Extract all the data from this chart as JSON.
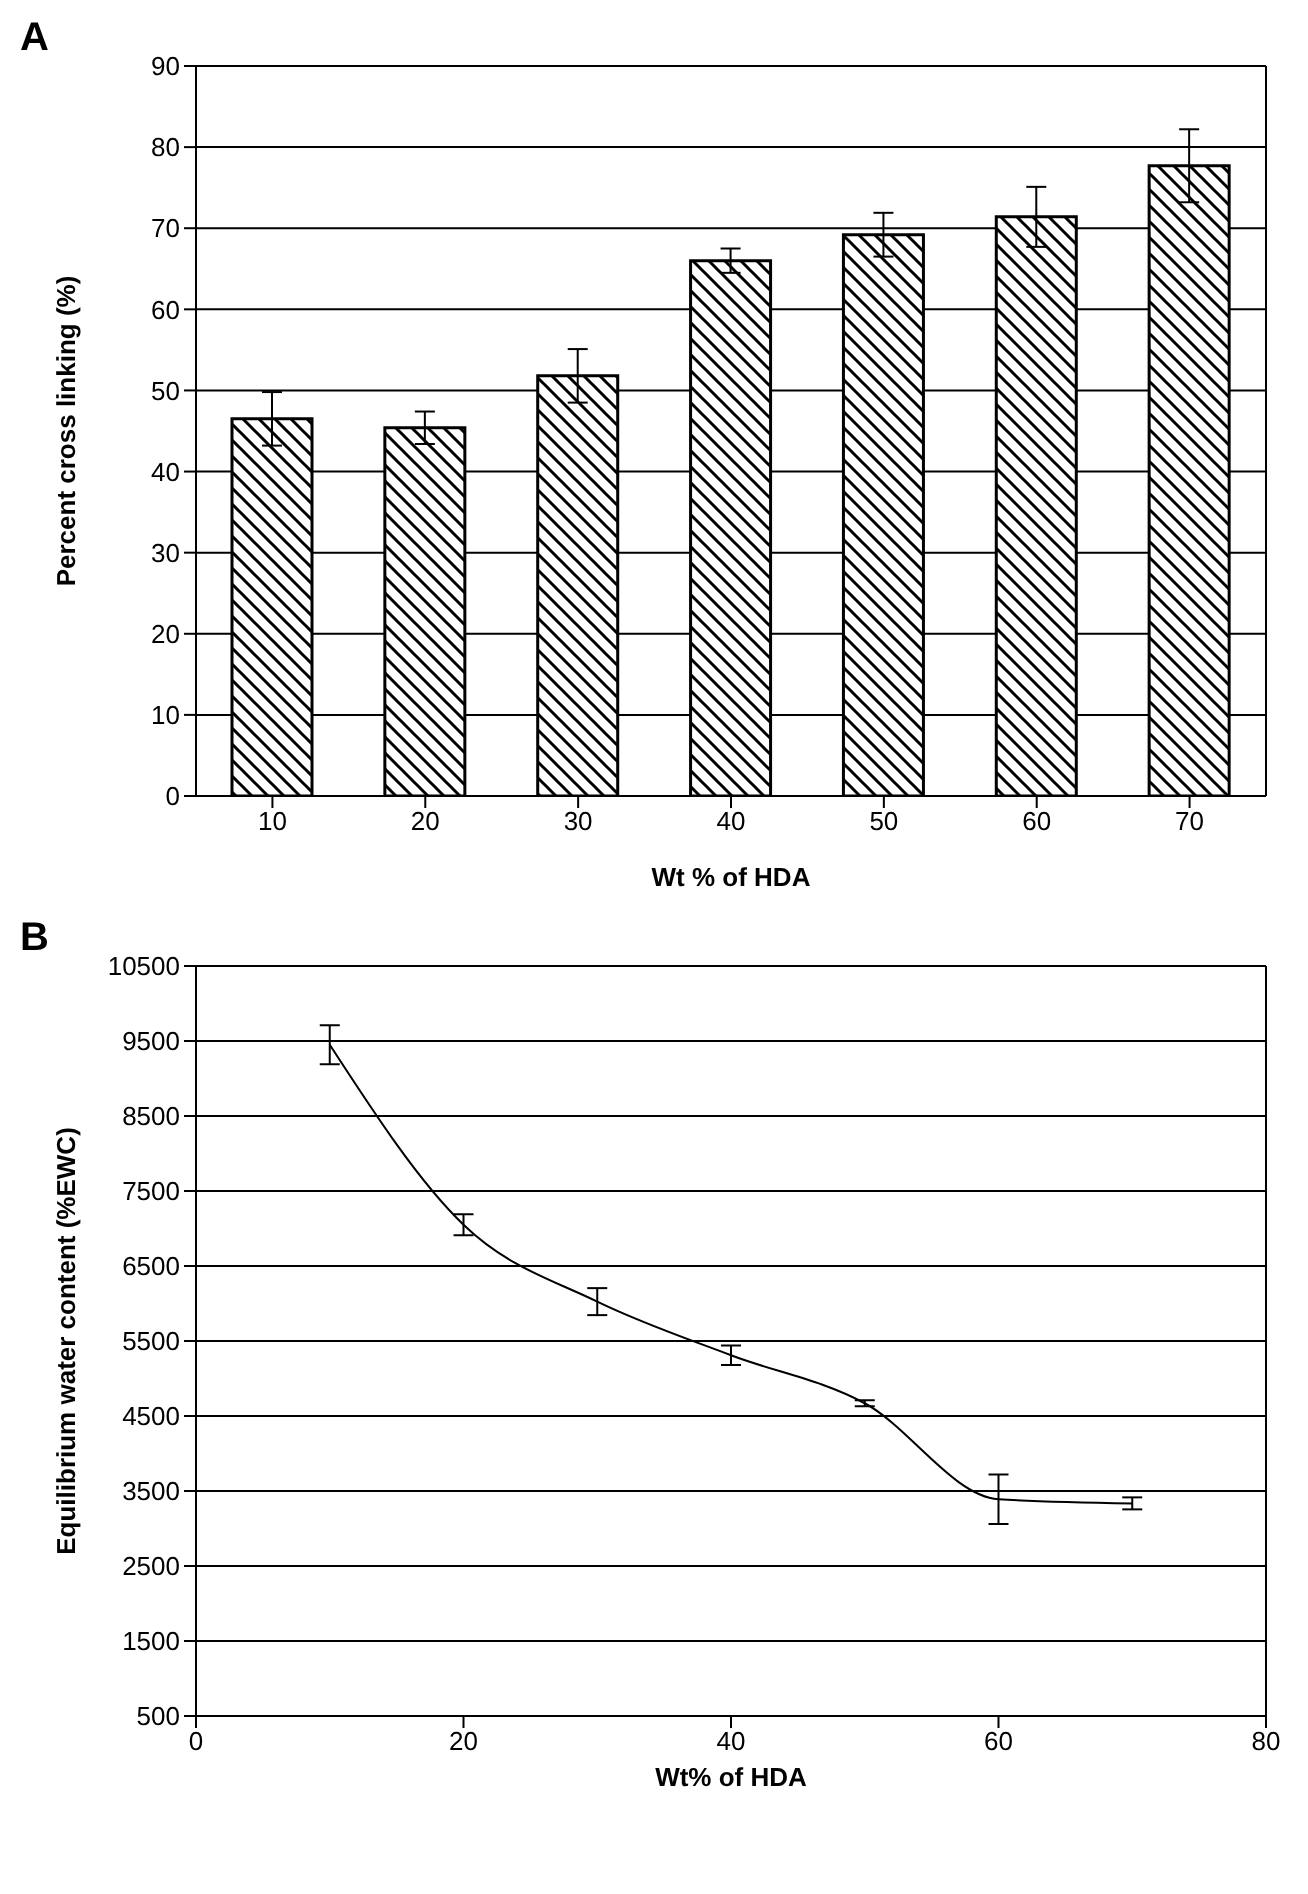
{
  "chart_data": [
    {
      "type": "bar",
      "annotations": [
        "A"
      ],
      "xlabel": "Wt % of HDA",
      "ylabel": "Percent cross linking (%)",
      "categories": [
        "10",
        "20",
        "30",
        "40",
        "50",
        "60",
        "70"
      ],
      "series": [
        {
          "color": "#000000",
          "values": [
            46.5,
            45.4,
            51.8,
            66,
            69.2,
            71.4,
            77.7
          ],
          "errors": [
            3.3,
            2,
            3.3,
            1.5,
            2.7,
            3.7,
            4.5
          ]
        }
      ],
      "ylim": [
        0,
        90
      ],
      "yticks": [
        0,
        10,
        20,
        30,
        40,
        50,
        60,
        70,
        80,
        90
      ],
      "grid": "y"
    },
    {
      "type": "line",
      "annotations": [
        "B"
      ],
      "xlabel": "Wt% of HDA",
      "ylabel": "Equilibrium water content (%EWC)",
      "x": [
        10,
        20,
        30,
        40,
        50,
        60,
        70
      ],
      "series": [
        {
          "color": "#000000",
          "values": [
            9450,
            7050,
            6025,
            5310,
            4670,
            3390,
            3335
          ],
          "errors": [
            260,
            140,
            180,
            130,
            40,
            330,
            80
          ]
        }
      ],
      "xlim": [
        0,
        80
      ],
      "xticks": [
        0,
        20,
        40,
        60,
        80
      ],
      "ylim": [
        500,
        10500
      ],
      "yticks": [
        500,
        1500,
        2500,
        3500,
        4500,
        5500,
        6500,
        7500,
        8500,
        9500,
        10500
      ],
      "grid": "y",
      "line_style": "solid"
    }
  ]
}
